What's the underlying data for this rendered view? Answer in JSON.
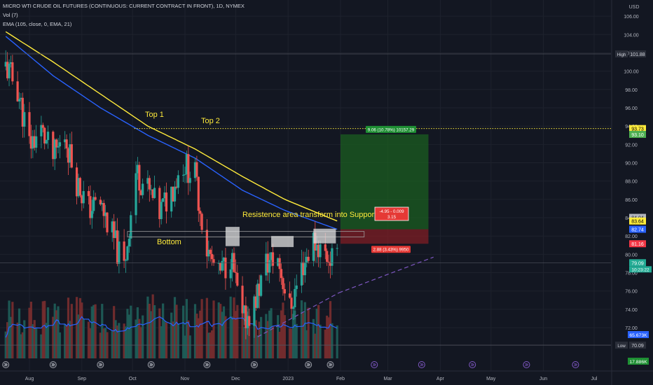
{
  "header": {
    "symbol_line": "MICRO WTI CRUDE OIL FUTURES (CONTINUOUS: CURRENT CONTRACT IN FRONT), 1D, NYMEX",
    "vol_line": "Vol (7)",
    "ema_line": "EMA (105, close, 0, EMA, 21)",
    "currency": "USD"
  },
  "chart_data": {
    "type": "candlestick",
    "x_ticks": [
      "Aug",
      "Sep",
      "Oct",
      "Nov",
      "Dec",
      "2023",
      "Feb",
      "Mar",
      "Apr",
      "May",
      "Jun",
      "Jul"
    ],
    "y_ticks": [
      106,
      104,
      102,
      100,
      98,
      96,
      94,
      92,
      90,
      88,
      86,
      84,
      82,
      80,
      78,
      76,
      74,
      72
    ],
    "ylim": [
      69.6,
      107.0
    ],
    "price_series": [
      [
        "2022-07-18",
        100.5
      ],
      [
        "2022-07-25",
        98.0
      ],
      [
        "2022-08-01",
        92.0
      ],
      [
        "2022-08-08",
        93.5
      ],
      [
        "2022-08-15",
        90.5
      ],
      [
        "2022-08-22",
        93.0
      ],
      [
        "2022-08-29",
        88.0
      ],
      [
        "2022-09-05",
        85.0
      ],
      [
        "2022-09-12",
        85.5
      ],
      [
        "2022-09-19",
        82.0
      ],
      [
        "2022-09-26",
        78.5
      ],
      [
        "2022-10-03",
        89.0
      ],
      [
        "2022-10-10",
        87.0
      ],
      [
        "2022-10-17",
        84.5
      ],
      [
        "2022-10-24",
        87.0
      ],
      [
        "2022-10-31",
        90.0
      ],
      [
        "2022-11-07",
        88.5
      ],
      [
        "2022-11-14",
        80.5
      ],
      [
        "2022-11-21",
        77.5
      ],
      [
        "2022-11-28",
        80.0
      ],
      [
        "2022-12-05",
        72.5
      ],
      [
        "2022-12-12",
        74.5
      ],
      [
        "2022-12-19",
        79.0
      ],
      [
        "2022-12-26",
        79.5
      ],
      [
        "2023-01-02",
        74.0
      ],
      [
        "2023-01-09",
        78.5
      ],
      [
        "2023-01-16",
        81.5
      ],
      [
        "2023-01-23",
        80.0
      ],
      [
        "2023-01-30",
        79.1
      ]
    ],
    "ema_series": [
      [
        "2022-07-18",
        104.3
      ],
      [
        "2022-08-15",
        101.0
      ],
      [
        "2022-09-12",
        97.5
      ],
      [
        "2022-10-10",
        94.0
      ],
      [
        "2022-11-07",
        91.5
      ],
      [
        "2022-12-05",
        88.5
      ],
      [
        "2022-12-30",
        86.0
      ],
      [
        "2023-01-30",
        83.64
      ]
    ],
    "ema_series_2": [
      [
        "2022-07-18",
        103.8
      ],
      [
        "2022-08-15",
        99.5
      ],
      [
        "2022-09-12",
        96.0
      ],
      [
        "2022-10-10",
        93.0
      ],
      [
        "2022-11-07",
        90.5
      ],
      [
        "2022-12-05",
        87.0
      ],
      [
        "2022-12-30",
        84.8
      ],
      [
        "2023-01-30",
        82.74
      ]
    ],
    "annotations": {
      "top1": "Top 1",
      "top2": "Top 2",
      "bottom": "Bottom",
      "resistance": "Resistence area  transform into Support area"
    },
    "position": {
      "entry": 82.74,
      "target": 93.1,
      "stop": 81.16,
      "target_label": "9.06 (10.78%) 10157.29",
      "stop_label": "2.88 (3.43%) 9950",
      "info_line1": "-4.95 - 0.009",
      "info_line2": "3.15"
    },
    "high": {
      "label": "High",
      "value": "101.88",
      "y": 101.88
    },
    "low": {
      "label": "Low",
      "value": "70.09",
      "y": 70.09
    },
    "price_tags": [
      {
        "text": "93.73",
        "y": 93.73,
        "bg": "#ffeb3b",
        "fg": "#000000"
      },
      {
        "text": "93.10",
        "y": 93.1,
        "bg": "#4caf50",
        "fg": "#ffffff"
      },
      {
        "text": "84.04",
        "y": 84.04,
        "bg": "#b2b5be",
        "fg": "#131722"
      },
      {
        "text": "83.64",
        "y": 83.64,
        "bg": "#ffeb3b",
        "fg": "#000000"
      },
      {
        "text": "82.74",
        "y": 82.74,
        "bg": "#2962ff",
        "fg": "#ffffff"
      },
      {
        "text": "81.16",
        "y": 81.16,
        "bg": "#f23645",
        "fg": "#ffffff"
      },
      {
        "text": "79.09",
        "y": 79.09,
        "bg": "#22ab94",
        "fg": "#ffffff"
      }
    ],
    "countdown": "10:23:22",
    "volume_tags": [
      "65.673K",
      "17.886K"
    ],
    "colors": {
      "up": "#26a69a",
      "down": "#ef5350",
      "ema1": "#ffeb3b",
      "ema2": "#2962ff",
      "trend": "#7e57c2"
    }
  }
}
